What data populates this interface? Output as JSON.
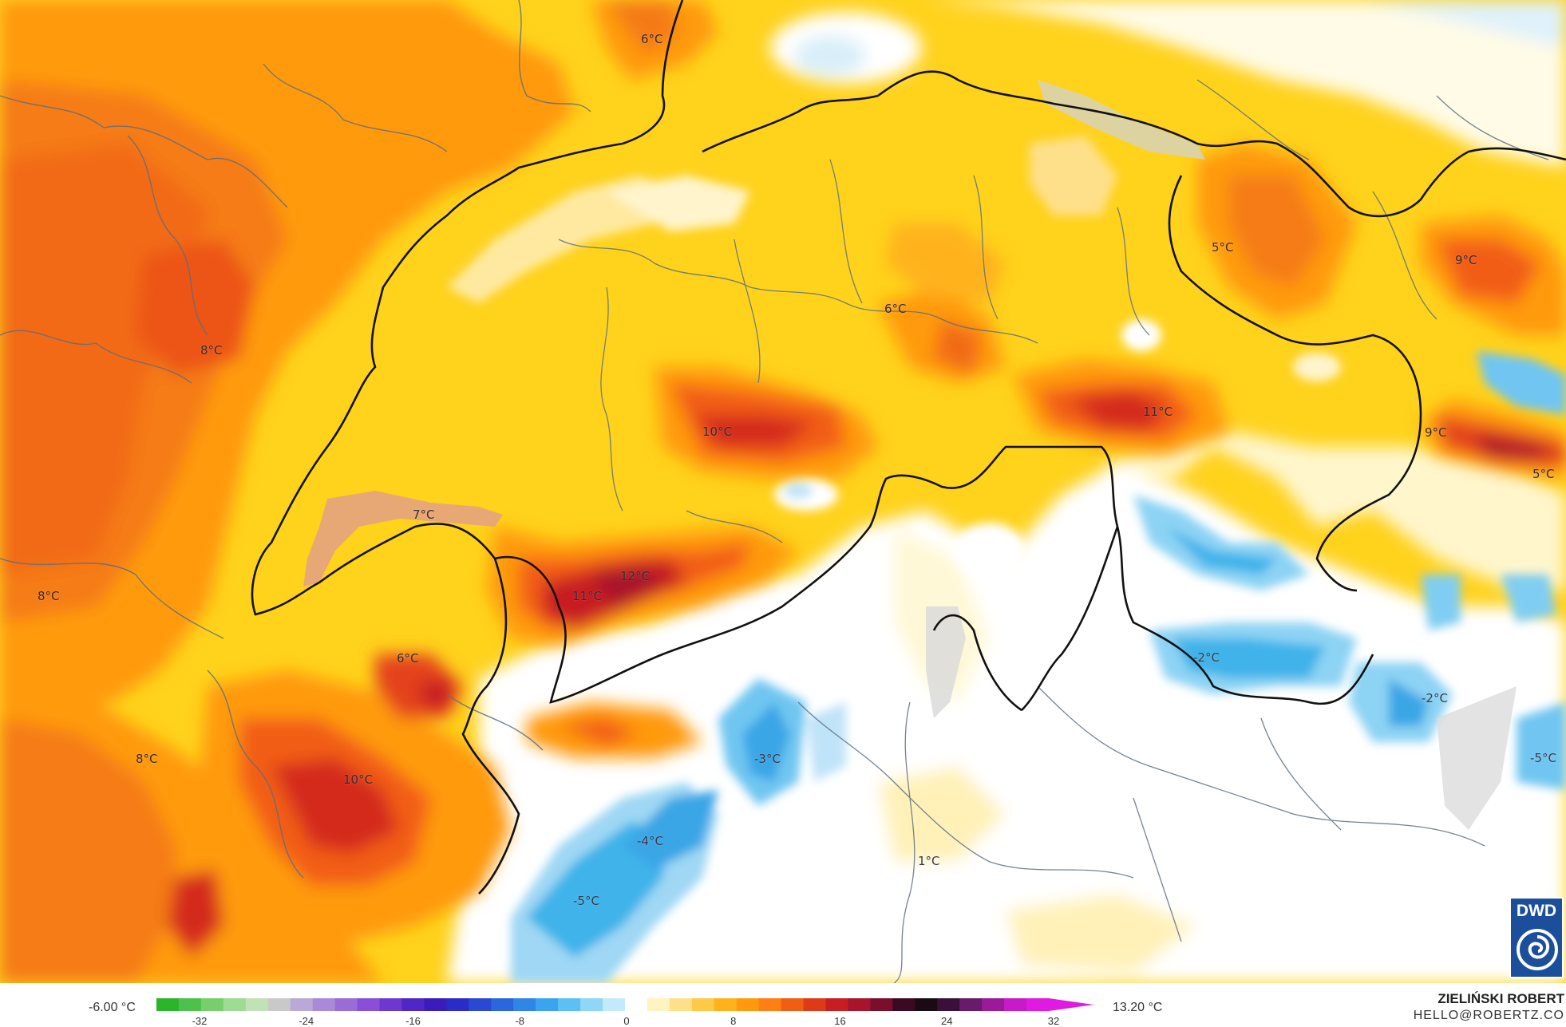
{
  "map": {
    "labels": [
      {
        "text": "6°C"
      },
      {
        "text": "8°C"
      },
      {
        "text": "8°C"
      },
      {
        "text": "7°C"
      },
      {
        "text": "10°C"
      },
      {
        "text": "12°C"
      },
      {
        "text": "11°C"
      },
      {
        "text": "6°C"
      },
      {
        "text": "8°C"
      },
      {
        "text": "10°C"
      },
      {
        "text": "6°C"
      },
      {
        "text": "11°C"
      },
      {
        "text": "5°C"
      },
      {
        "text": "9°C"
      },
      {
        "text": "9°C"
      },
      {
        "text": "5°C"
      },
      {
        "text": "-2°C"
      },
      {
        "text": "-2°C"
      },
      {
        "text": "-3°C"
      },
      {
        "text": "-4°C"
      },
      {
        "text": "-5°C"
      },
      {
        "text": "1°C"
      },
      {
        "text": "-5°C"
      }
    ]
  },
  "logo": {
    "text": "DWD"
  },
  "legend": {
    "min_label": "-6.00 °C",
    "max_label": "13.20 °C",
    "ticks": [
      "-32",
      "-24",
      "-16",
      "-8",
      "0",
      "8",
      "16",
      "24",
      "32"
    ],
    "colors": [
      "#2bb52b",
      "#4cc14c",
      "#76cf6a",
      "#9edb93",
      "#bfe3b6",
      "#c9c9c9",
      "#b9a8d8",
      "#a98ad8",
      "#9a6cd8",
      "#8a4fd8",
      "#6d38cf",
      "#5126c6",
      "#3a1cbd",
      "#2a2cc7",
      "#2a48d3",
      "#2a66de",
      "#2f86e6",
      "#3aa4ee",
      "#5cc0f3",
      "#8fd6f7",
      "#c3eafb",
      "#ffffff",
      "#fff3c2",
      "#ffe08a",
      "#ffc94a",
      "#ffb21a",
      "#ff9a10",
      "#ff7f12",
      "#f25d14",
      "#de3a18",
      "#c81e22",
      "#a8142c",
      "#7a0e2c",
      "#3b0a22",
      "#1a0a14",
      "#3a1038",
      "#6a1a6a",
      "#9a1a9a",
      "#c81ac8",
      "#e01ae0"
    ]
  },
  "credit": {
    "name": "ZIELIŃSKI ROBERT",
    "email": "HELLO@ROBERTZ.CO"
  }
}
